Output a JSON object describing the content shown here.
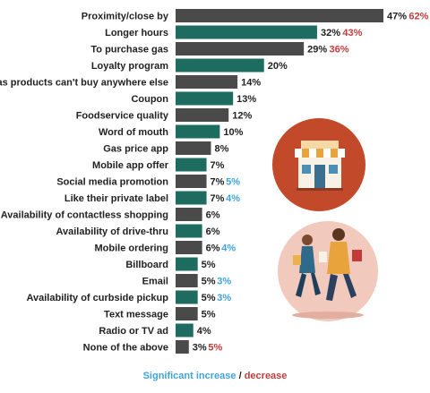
{
  "chart_data": {
    "type": "bar",
    "orientation": "horizontal",
    "categories": [
      "Proximity/close by",
      "Longer hours",
      "To purchase gas",
      "Loyalty program",
      "Has products can't buy anywhere else",
      "Coupon",
      "Foodservice quality",
      "Word of mouth",
      "Gas price app",
      "Mobile app offer",
      "Social media promotion",
      "Like their private label",
      "Availability of contactless shopping",
      "Availability of drive-thru",
      "Mobile ordering",
      "Billboard",
      "Email",
      "Availability of curbside pickup",
      "Text message",
      "Radio or TV ad",
      "None of the above"
    ],
    "values": [
      47,
      32,
      29,
      20,
      14,
      13,
      12,
      10,
      8,
      7,
      7,
      7,
      6,
      6,
      6,
      5,
      5,
      5,
      5,
      4,
      3
    ],
    "value_labels": [
      "47%",
      "32%",
      "29%",
      "20%",
      "14%",
      "13%",
      "12%",
      "10%",
      "8%",
      "7%",
      "7%",
      "7%",
      "6%",
      "6%",
      "6%",
      "5%",
      "5%",
      "5%",
      "5%",
      "4%",
      "3%"
    ],
    "bar_colors": [
      "#4a4a4a",
      "#1e6b5f",
      "#4a4a4a",
      "#1e6b5f",
      "#4a4a4a",
      "#1e6b5f",
      "#4a4a4a",
      "#1e6b5f",
      "#4a4a4a",
      "#1e6b5f",
      "#4a4a4a",
      "#1e6b5f",
      "#4a4a4a",
      "#1e6b5f",
      "#4a4a4a",
      "#1e6b5f",
      "#4a4a4a",
      "#1e6b5f",
      "#4a4a4a",
      "#1e6b5f",
      "#4a4a4a"
    ],
    "comparison_labels": [
      "62%",
      "43%",
      "36%",
      "",
      "",
      "",
      "",
      "",
      "",
      "",
      "5%",
      "4%",
      "",
      "",
      "4%",
      "",
      "3%",
      "3%",
      "",
      "",
      "5%"
    ],
    "comparison_types": [
      "decrease",
      "decrease",
      "decrease",
      "",
      "",
      "",
      "",
      "",
      "",
      "",
      "increase",
      "increase",
      "",
      "",
      "increase",
      "",
      "increase",
      "increase",
      "",
      "",
      "decrease"
    ],
    "xlim": [
      0,
      47
    ],
    "grid": false,
    "legend_position": "bottom-center"
  },
  "legend": {
    "increase_label": "Significant increase",
    "separator": "/",
    "decrease_label": "decrease"
  },
  "colors": {
    "bar_dark": "#4a4a4a",
    "bar_teal": "#1e6b5f",
    "increase": "#3fa3dc",
    "decrease": "#c23b3b",
    "store_circle": "#c24a2b",
    "people_circle": "#f2c9bd"
  },
  "icons": {
    "store": "storefront-icon",
    "people": "shoppers-illustration"
  }
}
